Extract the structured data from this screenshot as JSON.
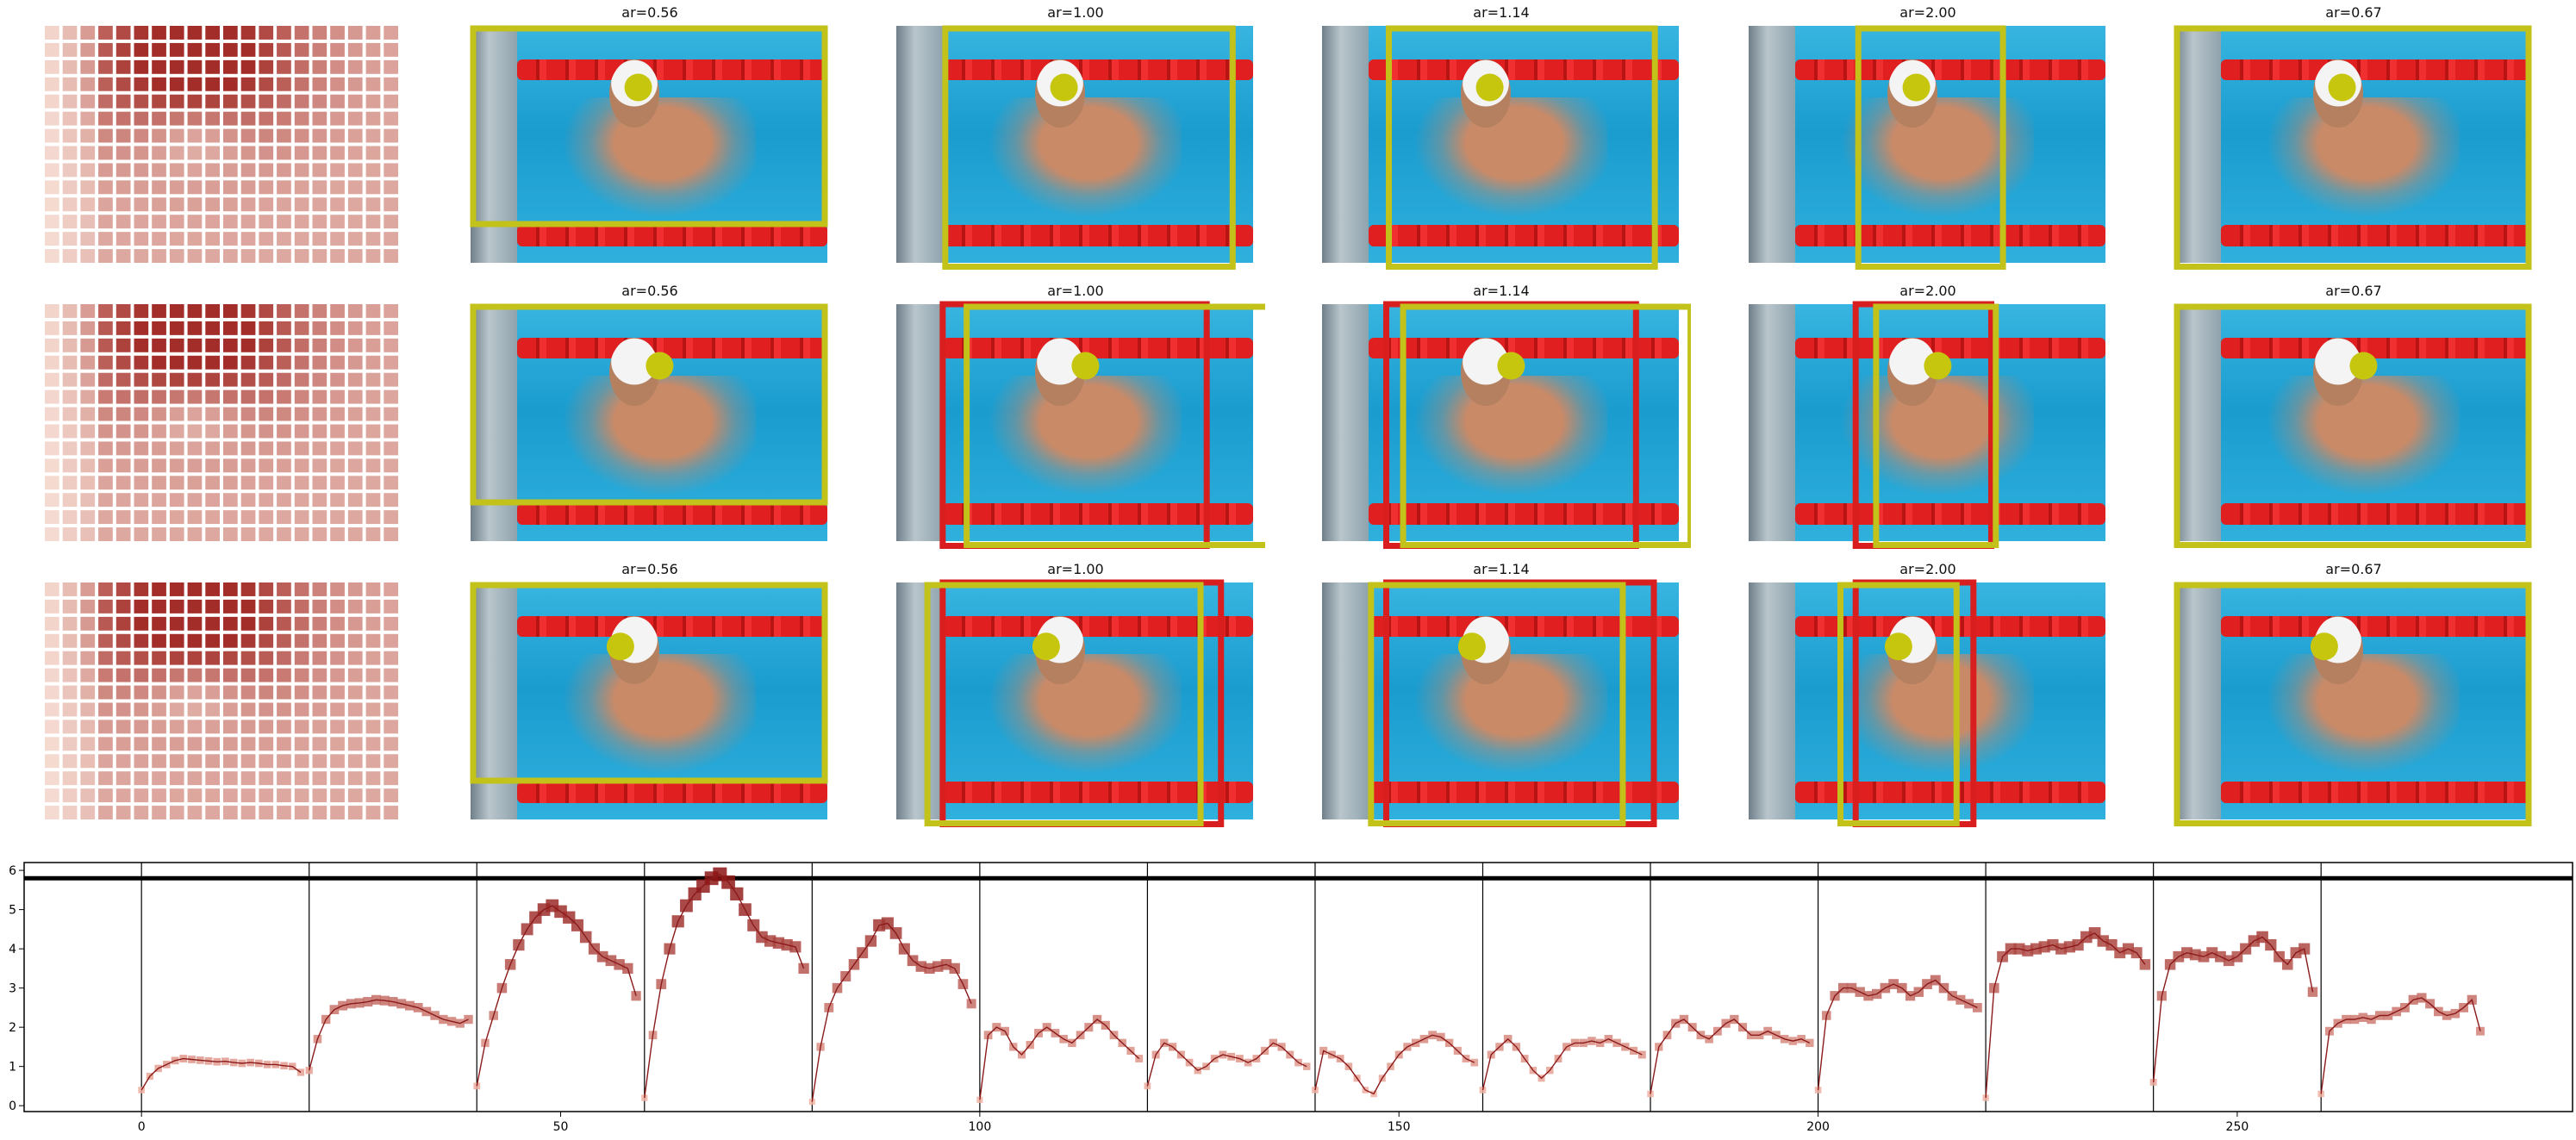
{
  "panels": {
    "titles": [
      [
        "ar=0.56",
        "ar=1.00",
        "ar=1.14",
        "ar=2.00",
        "ar=0.67"
      ],
      [
        "ar=0.56",
        "ar=1.00",
        "ar=1.14",
        "ar=2.00",
        "ar=0.67"
      ],
      [
        "ar=0.56",
        "ar=1.00",
        "ar=1.14",
        "ar=2.00",
        "ar=0.67"
      ]
    ],
    "colors": {
      "yellow_box": "#c2c21a",
      "red_box": "#d81e1e",
      "dot": "#c6c60e"
    }
  },
  "chart_data": {
    "type": "line",
    "title": "",
    "xlabel": "",
    "ylabel": "",
    "xlim": [
      -14,
      290
    ],
    "ylim": [
      -0.15,
      6.2
    ],
    "xticks": [
      0,
      50,
      100,
      150,
      200,
      250
    ],
    "yticks": [
      0,
      1,
      2,
      3,
      4,
      5,
      6
    ],
    "grid": false,
    "hline": 5.8,
    "vlines": [
      0,
      20,
      40,
      60,
      80,
      100,
      120,
      140,
      160,
      180,
      200,
      220,
      240,
      260
    ],
    "line_color": "#8b1a1a",
    "segments": [
      {
        "start": 0,
        "values": [
          0.4,
          0.75,
          0.95,
          1.05,
          1.15,
          1.2,
          1.18,
          1.16,
          1.14,
          1.12,
          1.13,
          1.1,
          1.08,
          1.1,
          1.08,
          1.05,
          1.05,
          1.02,
          1.0,
          0.85
        ]
      },
      {
        "start": 20,
        "values": [
          0.9,
          1.7,
          2.2,
          2.45,
          2.55,
          2.6,
          2.62,
          2.65,
          2.7,
          2.68,
          2.65,
          2.6,
          2.55,
          2.5,
          2.4,
          2.3,
          2.2,
          2.15,
          2.1,
          2.2
        ]
      },
      {
        "start": 40,
        "values": [
          0.5,
          1.6,
          2.3,
          3.0,
          3.6,
          4.1,
          4.5,
          4.8,
          5.0,
          5.1,
          4.95,
          4.8,
          4.6,
          4.3,
          4.0,
          3.8,
          3.7,
          3.6,
          3.5,
          2.8
        ]
      },
      {
        "start": 60,
        "values": [
          0.2,
          1.8,
          3.1,
          4.0,
          4.7,
          5.1,
          5.4,
          5.6,
          5.8,
          5.9,
          5.7,
          5.4,
          5.0,
          4.6,
          4.3,
          4.2,
          4.15,
          4.1,
          4.05,
          3.5
        ]
      },
      {
        "start": 80,
        "values": [
          0.1,
          1.5,
          2.5,
          3.0,
          3.3,
          3.6,
          3.9,
          4.2,
          4.6,
          4.65,
          4.4,
          4.0,
          3.7,
          3.55,
          3.5,
          3.55,
          3.6,
          3.5,
          3.1,
          2.6
        ]
      },
      {
        "start": 100,
        "values": [
          0.15,
          1.8,
          2.0,
          1.9,
          1.5,
          1.3,
          1.55,
          1.85,
          2.0,
          1.85,
          1.7,
          1.6,
          1.8,
          2.0,
          2.2,
          2.05,
          1.8,
          1.6,
          1.4,
          1.2
        ]
      },
      {
        "start": 120,
        "values": [
          0.5,
          1.3,
          1.6,
          1.5,
          1.3,
          1.1,
          0.9,
          1.0,
          1.2,
          1.3,
          1.25,
          1.2,
          1.1,
          1.2,
          1.4,
          1.6,
          1.5,
          1.3,
          1.1,
          1.0
        ]
      },
      {
        "start": 140,
        "values": [
          0.4,
          1.4,
          1.3,
          1.2,
          1.0,
          0.7,
          0.4,
          0.3,
          0.7,
          1.0,
          1.3,
          1.5,
          1.6,
          1.7,
          1.8,
          1.75,
          1.6,
          1.4,
          1.2,
          1.1
        ]
      },
      {
        "start": 160,
        "values": [
          0.4,
          1.3,
          1.5,
          1.7,
          1.5,
          1.2,
          0.9,
          0.7,
          0.9,
          1.2,
          1.5,
          1.6,
          1.6,
          1.65,
          1.6,
          1.7,
          1.6,
          1.5,
          1.4,
          1.3
        ]
      },
      {
        "start": 180,
        "values": [
          0.3,
          1.5,
          1.8,
          2.1,
          2.2,
          2.0,
          1.8,
          1.7,
          1.9,
          2.1,
          2.2,
          2.0,
          1.8,
          1.8,
          1.9,
          1.8,
          1.7,
          1.65,
          1.7,
          1.6
        ]
      },
      {
        "start": 200,
        "values": [
          0.4,
          2.3,
          2.8,
          3.0,
          3.0,
          2.9,
          2.8,
          2.85,
          3.0,
          3.1,
          3.0,
          2.8,
          2.9,
          3.1,
          3.2,
          3.0,
          2.8,
          2.7,
          2.6,
          2.5
        ]
      },
      {
        "start": 220,
        "values": [
          0.2,
          3.0,
          3.8,
          4.0,
          4.0,
          3.95,
          4.0,
          4.05,
          4.1,
          4.0,
          4.05,
          4.1,
          4.3,
          4.4,
          4.2,
          4.1,
          3.9,
          4.0,
          3.9,
          3.6
        ]
      },
      {
        "start": 240,
        "values": [
          0.6,
          2.8,
          3.6,
          3.8,
          3.9,
          3.85,
          3.8,
          3.9,
          3.8,
          3.7,
          3.8,
          4.0,
          4.2,
          4.3,
          4.1,
          3.8,
          3.6,
          3.9,
          4.0,
          2.9
        ]
      },
      {
        "start": 260,
        "values": [
          0.3,
          1.9,
          2.1,
          2.2,
          2.2,
          2.25,
          2.2,
          2.3,
          2.3,
          2.4,
          2.5,
          2.7,
          2.75,
          2.6,
          2.4,
          2.3,
          2.35,
          2.5,
          2.7,
          1.9
        ]
      }
    ]
  }
}
